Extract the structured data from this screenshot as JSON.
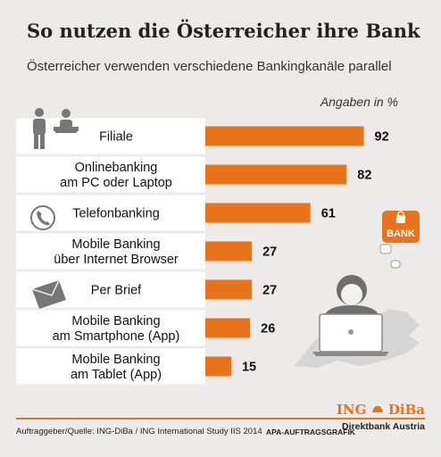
{
  "title": "So nutzen die Österreicher ihre Bank",
  "subtitle": "Österreicher verwenden verschiedene Bankingkanäle parallel",
  "unit_note": "Angaben in %",
  "chart_data": {
    "type": "bar",
    "orientation": "horizontal",
    "categories": [
      [
        "Filiale"
      ],
      [
        "Onlinebanking",
        "am PC oder Laptop"
      ],
      [
        "Telefonbanking"
      ],
      [
        "Mobile Banking",
        "über Internet Browser"
      ],
      [
        "Per Brief"
      ],
      [
        "Mobile Banking",
        "am Smartphone (App)"
      ],
      [
        "Mobile Banking",
        "am Tablet (App)"
      ]
    ],
    "values": [
      92,
      82,
      61,
      27,
      27,
      26,
      15
    ],
    "xlim": [
      0,
      100
    ],
    "bar_color": "#e8731a",
    "grid": false,
    "legend": "none"
  },
  "icons": {
    "filiale": "people-counter-icon",
    "telefon": "telephone-icon",
    "brief": "envelope-icon",
    "illustration": "person-laptop-austria-icon",
    "badge": "bank-lock-badge-icon"
  },
  "badge_text": "BANK",
  "footer": {
    "source": "Auftraggeber/Quelle: ING-DiBa / ING International Study IIS 2014",
    "agency": "APA-AUFTRAGSGRAFIK",
    "brand": "ING",
    "brand2": "DiBa",
    "brand_sub": "Direktbank Austria"
  },
  "colors": {
    "accent": "#e8731a",
    "background": "#ecebe9",
    "panel": "#ffffff"
  }
}
